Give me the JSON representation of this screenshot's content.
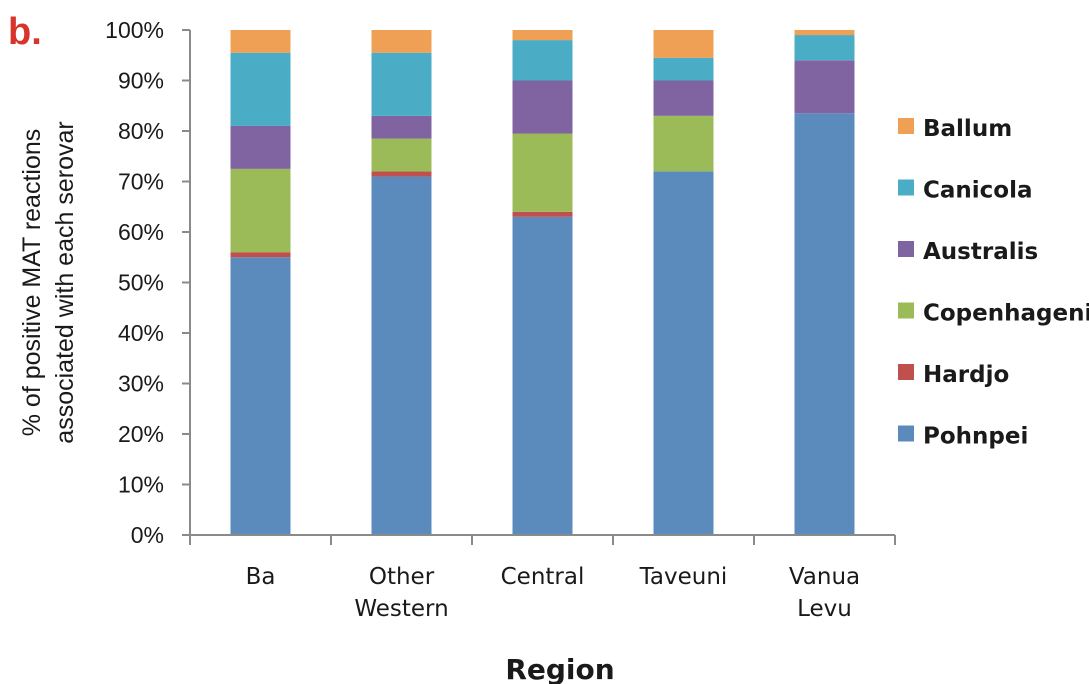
{
  "panel_label": "b.",
  "colors": {
    "panel_label": "#d9342b",
    "axis": "#8a8a8a"
  },
  "chart_data": {
    "type": "bar",
    "stacked": true,
    "xlabel": "Region",
    "ylabel_lines": [
      "% of positive MAT reactions",
      "associated with each serovar"
    ],
    "ylim": [
      0,
      100
    ],
    "ytick_step": 10,
    "ytick_suffix": "%",
    "grid": false,
    "legend_position": "right",
    "categories": [
      [
        "Ba"
      ],
      [
        "Other",
        "Western"
      ],
      [
        "Central"
      ],
      [
        "Taveuni"
      ],
      [
        "Vanua",
        "Levu"
      ]
    ],
    "series": [
      {
        "name": "Pohnpei",
        "color": "#5b8bbc",
        "values": [
          55,
          71,
          63,
          72,
          83.5
        ]
      },
      {
        "name": "Hardjo",
        "color": "#c0504d",
        "values": [
          1,
          1,
          1,
          0,
          0
        ]
      },
      {
        "name": "Copenhageni",
        "color": "#9bbb59",
        "values": [
          16.5,
          6.5,
          15.5,
          11,
          0
        ]
      },
      {
        "name": "Australis",
        "color": "#8064a2",
        "values": [
          8.5,
          4.5,
          10.5,
          7,
          10.5
        ]
      },
      {
        "name": "Canicola",
        "color": "#4bacc6",
        "values": [
          14.5,
          12.5,
          8,
          4.5,
          5
        ]
      },
      {
        "name": "Ballum",
        "color": "#f0a054",
        "values": [
          4.5,
          4.5,
          2,
          5.5,
          1
        ]
      }
    ]
  }
}
